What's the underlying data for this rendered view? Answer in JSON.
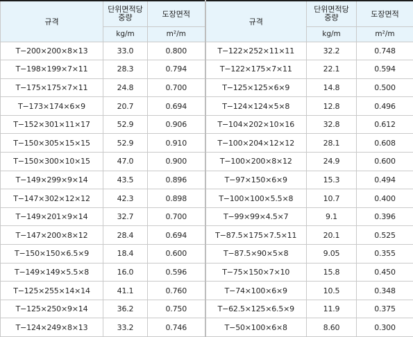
{
  "table": {
    "header": {
      "spec": "규격",
      "unit_weight_line1": "단위면적당",
      "unit_weight_line2": "중량",
      "paint_area": "도장면적",
      "unit_weight_unit": "kg/m",
      "paint_area_unit": "m²/m"
    },
    "rows": [
      [
        "T−200×200×8×13",
        "33.0",
        "0.800",
        "T−122×252×11×11",
        "32.2",
        "0.748"
      ],
      [
        "T−198×199×7×11",
        "28.3",
        "0.794",
        "T−122×175×7×11",
        "22.1",
        "0.594"
      ],
      [
        "T−175×175×7×11",
        "24.8",
        "0.700",
        "T−125×125×6×9",
        "14.8",
        "0.500"
      ],
      [
        "T−173×174×6×9",
        "20.7",
        "0.694",
        "T−124×124×5×8",
        "12.8",
        "0.496"
      ],
      [
        "T−152×301×11×17",
        "52.9",
        "0.906",
        "T−104×202×10×16",
        "32.8",
        "0.612"
      ],
      [
        "T−150×305×15×15",
        "52.9",
        "0.910",
        "T−100×204×12×12",
        "28.1",
        "0.608"
      ],
      [
        "T−150×300×10×15",
        "47.0",
        "0.900",
        "T−100×200×8×12",
        "24.9",
        "0.600"
      ],
      [
        "T−149×299×9×14",
        "43.5",
        "0.896",
        "T−97×150×6×9",
        "15.3",
        "0.494"
      ],
      [
        "T−147×302×12×12",
        "42.3",
        "0.898",
        "T−100×100×5.5×8",
        "10.7",
        "0.400"
      ],
      [
        "T−149×201×9×14",
        "32.7",
        "0.700",
        "T−99×99×4.5×7",
        "9.1",
        "0.396"
      ],
      [
        "T−147×200×8×12",
        "28.4",
        "0.694",
        "T−87.5×175×7.5×11",
        "20.1",
        "0.525"
      ],
      [
        "T−150×150×6.5×9",
        "18.4",
        "0.600",
        "T−87.5×90×5×8",
        "9.05",
        "0.355"
      ],
      [
        "T−149×149×5.5×8",
        "16.0",
        "0.596",
        "T−75×150×7×10",
        "15.8",
        "0.450"
      ],
      [
        "T−125×255×14×14",
        "41.1",
        "0.760",
        "T−74×100×6×9",
        "10.5",
        "0.348"
      ],
      [
        "T−125×250×9×14",
        "36.2",
        "0.750",
        "T−62.5×125×6.5×9",
        "11.9",
        "0.375"
      ],
      [
        "T−124×249×8×13",
        "33.2",
        "0.746",
        "T−50×100×6×8",
        "8.60",
        "0.300"
      ]
    ]
  }
}
